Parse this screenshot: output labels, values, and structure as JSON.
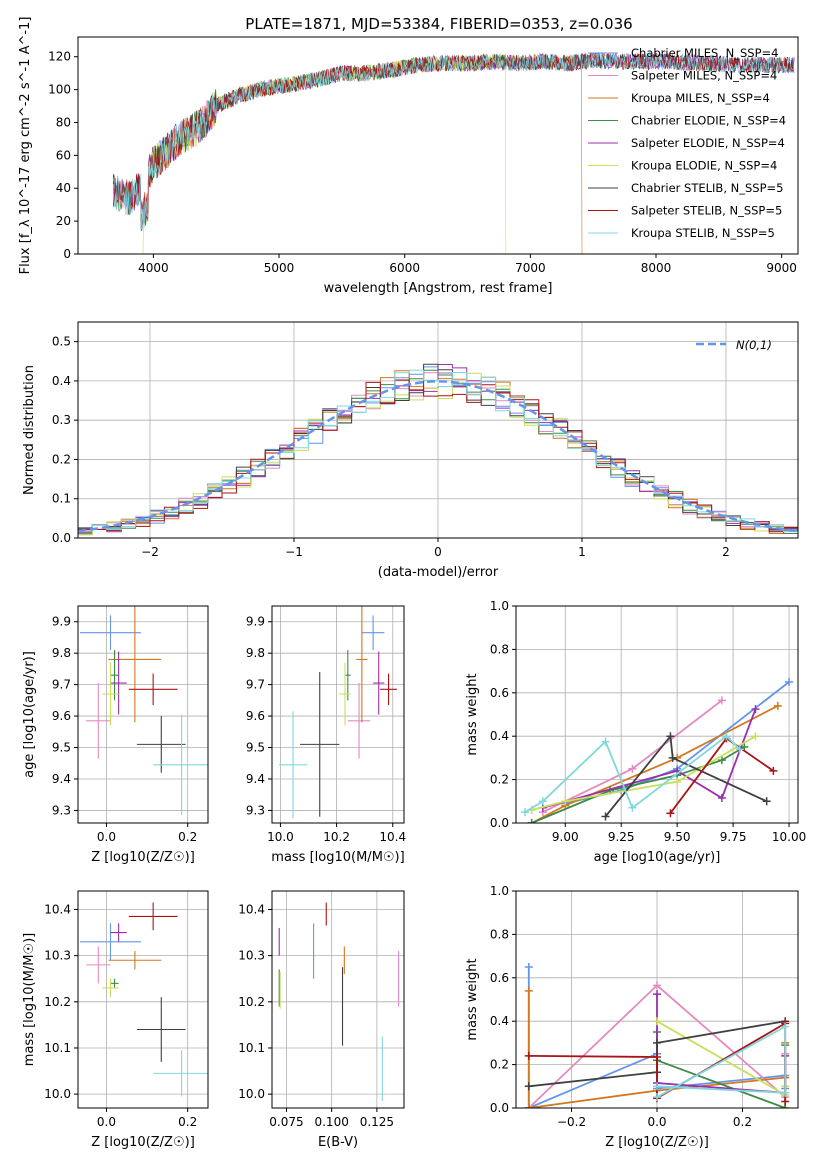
{
  "figure_title": "PLATE=1871, MJD=53384, FIBERID=0353, z=0.036",
  "colors": {
    "Chabrier MILES": "#6495ed",
    "Salpeter MILES": "#e58ac0",
    "Kroupa MILES": "#d2781e",
    "Chabrier ELODIE": "#3c8c46",
    "Salpeter ELODIE": "#9b2fae",
    "Kroupa ELODIE": "#c8e05a",
    "Chabrier STELIB": "#404040",
    "Salpeter STELIB": "#aa1414",
    "Kroupa STELIB": "#7fd8de"
  },
  "chart_data": [
    {
      "id": "spectrum",
      "type": "line",
      "xlabel": "wavelength [Angstrom, rest frame]",
      "ylabel": "Flux [f_λ 10^-17 erg cm^-2 s^-1 A^-1]",
      "xlim": [
        3400,
        9130
      ],
      "ylim": [
        0,
        132
      ],
      "xticks": [
        4000,
        5000,
        6000,
        7000,
        8000,
        9000
      ],
      "yticks": [
        0,
        20,
        40,
        60,
        80,
        100,
        120
      ],
      "grid": false,
      "legend": "top-right",
      "legend_entries": [
        "Chabrier MILES, N_SSP=4",
        "Salpeter MILES, N_SSP=4",
        "Kroupa MILES, N_SSP=4",
        "Chabrier ELODIE, N_SSP=4",
        "Salpeter ELODIE, N_SSP=4",
        "Kroupa ELODIE, N_SSP=4",
        "Chabrier STELIB, N_SSP=5",
        "Salpeter STELIB, N_SSP=5",
        "Kroupa STELIB, N_SSP=5"
      ],
      "continuum": {
        "x": [
          3680,
          3800,
          3900,
          4000,
          4100,
          4200,
          4300,
          4400,
          4500,
          4700,
          4900,
          5100,
          5300,
          5500,
          5700,
          5900,
          6100,
          6300,
          6500,
          6700,
          6900,
          7100,
          7300,
          7500,
          7800,
          8100,
          8400,
          8700,
          9100
        ],
        "y": [
          38,
          34,
          40,
          55,
          62,
          70,
          74,
          80,
          90,
          97,
          101,
          103,
          106,
          110,
          110,
          112,
          115,
          116,
          116,
          117,
          116,
          117,
          116,
          118,
          117,
          117,
          116,
          115,
          115
        ]
      },
      "cutoffs": [
        {
          "series": "Kroupa ELODIE",
          "x_end": 6800
        },
        {
          "series": "Kroupa MILES",
          "x_end": 7410
        },
        {
          "series": "Kroupa ELODIE",
          "x_start": 3920
        }
      ]
    },
    {
      "id": "residual-histogram",
      "type": "histogram",
      "xlabel": "(data-model)/error",
      "ylabel": "Normed distribution",
      "xlim": [
        -2.5,
        2.5
      ],
      "ylim": [
        0,
        0.55
      ],
      "xticks": [
        -2,
        -1,
        0,
        1,
        2
      ],
      "yticks": [
        0.0,
        0.1,
        0.2,
        0.3,
        0.4,
        0.5
      ],
      "grid": true,
      "legend": "top-right",
      "legend_entries": [
        "N(0,1)"
      ],
      "bin_width": 0.1
    },
    {
      "id": "age-vs-Z",
      "type": "errorbar",
      "xlabel": "Z [log10(Z/Z☉)]",
      "ylabel": "age  [log10(age/yr)]",
      "xlim": [
        -0.07,
        0.25
      ],
      "ylim": [
        9.26,
        9.95
      ],
      "xticks": [
        0.0,
        0.2
      ],
      "yticks": [
        9.3,
        9.4,
        9.5,
        9.6,
        9.7,
        9.8,
        9.9
      ],
      "grid": true,
      "points": [
        {
          "series": "Chabrier MILES",
          "x": 0.01,
          "xerr": 0.075,
          "y": 9.865,
          "yerr": 0.055
        },
        {
          "series": "Salpeter MILES",
          "x": -0.02,
          "xerr": 0.03,
          "y": 9.585,
          "yerr": 0.12
        },
        {
          "series": "Kroupa MILES",
          "x": 0.07,
          "xerr": 0.065,
          "y": 9.78,
          "yerr": 0.2
        },
        {
          "series": "Chabrier ELODIE",
          "x": 0.02,
          "xerr": 0.01,
          "y": 9.73,
          "yerr": 0.08
        },
        {
          "series": "Salpeter ELODIE",
          "x": 0.03,
          "xerr": 0.02,
          "y": 9.705,
          "yerr": 0.1
        },
        {
          "series": "Kroupa ELODIE",
          "x": 0.01,
          "xerr": 0.02,
          "y": 9.67,
          "yerr": 0.1
        },
        {
          "series": "Chabrier STELIB",
          "x": 0.135,
          "xerr": 0.06,
          "y": 9.51,
          "yerr": 0.09
        },
        {
          "series": "Salpeter STELIB",
          "x": 0.115,
          "xerr": 0.06,
          "y": 9.685,
          "yerr": 0.05
        },
        {
          "series": "Kroupa STELIB",
          "x": 0.185,
          "xerr": 0.07,
          "y": 9.445,
          "yerr": 0.16
        }
      ]
    },
    {
      "id": "age-vs-mass",
      "type": "errorbar",
      "xlabel": "mass [log10(M/M☉)]",
      "ylabel": "",
      "xlim": [
        9.97,
        10.44
      ],
      "ylim": [
        9.26,
        9.95
      ],
      "xticks": [
        10.0,
        10.2,
        10.4
      ],
      "yticks": [
        9.3,
        9.4,
        9.5,
        9.6,
        9.7,
        9.8,
        9.9
      ],
      "grid": true,
      "points": [
        {
          "series": "Chabrier MILES",
          "x": 10.33,
          "xerr": 0.04,
          "y": 9.865,
          "yerr": 0.055
        },
        {
          "series": "Salpeter MILES",
          "x": 10.28,
          "xerr": 0.04,
          "y": 9.585,
          "yerr": 0.12
        },
        {
          "series": "Kroupa MILES",
          "x": 10.29,
          "xerr": 0.02,
          "y": 9.78,
          "yerr": 0.2
        },
        {
          "series": "Chabrier ELODIE",
          "x": 10.24,
          "xerr": 0.01,
          "y": 9.73,
          "yerr": 0.08
        },
        {
          "series": "Salpeter ELODIE",
          "x": 10.35,
          "xerr": 0.02,
          "y": 9.705,
          "yerr": 0.1
        },
        {
          "series": "Kroupa ELODIE",
          "x": 10.23,
          "xerr": 0.02,
          "y": 9.67,
          "yerr": 0.1
        },
        {
          "series": "Chabrier STELIB",
          "x": 10.14,
          "xerr": 0.07,
          "y": 9.51,
          "yerr": 0.23
        },
        {
          "series": "Salpeter STELIB",
          "x": 10.385,
          "xerr": 0.03,
          "y": 9.685,
          "yerr": 0.05
        },
        {
          "series": "Kroupa STELIB",
          "x": 10.045,
          "xerr": 0.05,
          "y": 9.445,
          "yerr": 0.17
        }
      ]
    },
    {
      "id": "mass-weight-vs-age",
      "type": "line",
      "xlabel": "age  [log10(age/yr)]",
      "ylabel": "mass weight",
      "xlim": [
        8.78,
        10.04
      ],
      "ylim": [
        0,
        1
      ],
      "xticks": [
        9.0,
        9.25,
        9.5,
        9.75,
        10.0
      ],
      "yticks": [
        0.0,
        0.2,
        0.4,
        0.6,
        0.8,
        1.0
      ],
      "grid": true,
      "series": [
        {
          "name": "Chabrier MILES",
          "x": [
            9.0,
            9.25,
            9.5,
            10.0
          ],
          "y": [
            0.09,
            0.15,
            0.25,
            0.65
          ]
        },
        {
          "name": "Salpeter MILES",
          "x": [
            8.9,
            9.3,
            9.7
          ],
          "y": [
            0.05,
            0.25,
            0.565
          ]
        },
        {
          "name": "Kroupa MILES",
          "x": [
            8.85,
            9.0,
            9.5,
            9.95
          ],
          "y": [
            0.0,
            0.08,
            0.3,
            0.54
          ]
        },
        {
          "name": "Chabrier ELODIE",
          "x": [
            8.85,
            9.2,
            9.5,
            9.7,
            9.8
          ],
          "y": [
            0.0,
            0.15,
            0.22,
            0.29,
            0.35
          ]
        },
        {
          "name": "Salpeter ELODIE",
          "x": [
            8.9,
            9.5,
            9.7,
            9.85
          ],
          "y": [
            0.07,
            0.24,
            0.115,
            0.525
          ]
        },
        {
          "name": "Kroupa ELODIE",
          "x": [
            8.85,
            9.0,
            9.5,
            9.85
          ],
          "y": [
            0.06,
            0.1,
            0.19,
            0.4
          ]
        },
        {
          "name": "Chabrier STELIB",
          "x": [
            9.18,
            9.47,
            9.48,
            9.9
          ],
          "y": [
            0.03,
            0.4,
            0.3,
            0.1
          ]
        },
        {
          "name": "Salpeter STELIB",
          "x": [
            9.47,
            9.72,
            9.93
          ],
          "y": [
            0.045,
            0.39,
            0.24
          ]
        },
        {
          "name": "Kroupa STELIB",
          "x": [
            8.82,
            8.9,
            9.18,
            9.3,
            9.72,
            9.78
          ],
          "y": [
            0.05,
            0.1,
            0.375,
            0.07,
            0.4,
            0.34
          ]
        }
      ]
    },
    {
      "id": "mass-vs-Z",
      "type": "errorbar",
      "xlabel": "Z [log10(Z/Z☉)]",
      "ylabel": "mass [log10(M/M☉)]",
      "xlim": [
        -0.07,
        0.25
      ],
      "ylim": [
        9.97,
        10.44
      ],
      "xticks": [
        0.0,
        0.2
      ],
      "yticks": [
        10.0,
        10.1,
        10.2,
        10.3,
        10.4
      ],
      "grid": true,
      "points": [
        {
          "series": "Chabrier MILES",
          "x": 0.01,
          "xerr": 0.075,
          "y": 10.33,
          "yerr": 0.04
        },
        {
          "series": "Salpeter MILES",
          "x": -0.02,
          "xerr": 0.03,
          "y": 10.28,
          "yerr": 0.04
        },
        {
          "series": "Kroupa MILES",
          "x": 0.07,
          "xerr": 0.065,
          "y": 10.29,
          "yerr": 0.02
        },
        {
          "series": "Chabrier ELODIE",
          "x": 0.02,
          "xerr": 0.01,
          "y": 10.24,
          "yerr": 0.01
        },
        {
          "series": "Salpeter ELODIE",
          "x": 0.03,
          "xerr": 0.02,
          "y": 10.35,
          "yerr": 0.02
        },
        {
          "series": "Kroupa ELODIE",
          "x": 0.01,
          "xerr": 0.02,
          "y": 10.23,
          "yerr": 0.02
        },
        {
          "series": "Chabrier STELIB",
          "x": 0.135,
          "xerr": 0.06,
          "y": 10.14,
          "yerr": 0.07
        },
        {
          "series": "Salpeter STELIB",
          "x": 0.115,
          "xerr": 0.06,
          "y": 10.385,
          "yerr": 0.03
        },
        {
          "series": "Kroupa STELIB",
          "x": 0.185,
          "xerr": 0.07,
          "y": 10.045,
          "yerr": 0.05
        }
      ]
    },
    {
      "id": "mass-vs-ebv",
      "type": "errorbar",
      "xlabel": "E(B-V)",
      "ylabel": "",
      "xlim": [
        0.067,
        0.14
      ],
      "ylim": [
        9.97,
        10.44
      ],
      "xticks": [
        0.075,
        0.1,
        0.125
      ],
      "yticks": [
        10.0,
        10.1,
        10.2,
        10.3,
        10.4
      ],
      "grid": true,
      "points": [
        {
          "series": "Chabrier MILES",
          "x": 0.09,
          "xerr": 0,
          "y": 10.31,
          "yerr": 0.06
        },
        {
          "series": "Salpeter MILES",
          "x": 0.137,
          "xerr": 0,
          "y": 10.25,
          "yerr": 0.06
        },
        {
          "series": "Kroupa MILES",
          "x": 0.107,
          "xerr": 0,
          "y": 10.29,
          "yerr": 0.03
        },
        {
          "series": "Chabrier ELODIE",
          "x": 0.071,
          "xerr": 0,
          "y": 10.23,
          "yerr": 0.04
        },
        {
          "series": "Salpeter ELODIE",
          "x": 0.071,
          "xerr": 0,
          "y": 10.33,
          "yerr": 0.03
        },
        {
          "series": "Kroupa ELODIE",
          "x": 0.0715,
          "xerr": 0,
          "y": 10.225,
          "yerr": 0.04
        },
        {
          "series": "Chabrier STELIB",
          "x": 0.106,
          "xerr": 0,
          "y": 10.19,
          "yerr": 0.085
        },
        {
          "series": "Salpeter STELIB",
          "x": 0.097,
          "xerr": 0,
          "y": 10.39,
          "yerr": 0.025
        },
        {
          "series": "Kroupa STELIB",
          "x": 0.128,
          "xerr": 0,
          "y": 10.055,
          "yerr": 0.07
        }
      ]
    },
    {
      "id": "mass-weight-vs-Z",
      "type": "line",
      "xlabel": "Z [log10(Z/Z☉)]",
      "ylabel": "mass weight",
      "xlim": [
        -0.33,
        0.33
      ],
      "ylim": [
        0,
        1
      ],
      "xticks": [
        -0.2,
        0.0,
        0.2
      ],
      "yticks": [
        0.0,
        0.2,
        0.4,
        0.6,
        0.8,
        1.0
      ],
      "grid": true,
      "series": [
        {
          "name": "Chabrier MILES",
          "x": [
            -0.3,
            -0.3,
            0.0,
            0.0,
            0.3,
            0.3
          ],
          "y": [
            0.65,
            0.0,
            0.25,
            0.09,
            0.15,
            0.09
          ]
        },
        {
          "name": "Salpeter MILES",
          "x": [
            -0.3,
            0.0,
            0.3,
            0.3
          ],
          "y": [
            0.0,
            0.565,
            0.05,
            0.25
          ]
        },
        {
          "name": "Kroupa MILES",
          "x": [
            -0.3,
            -0.3,
            0.0,
            0.3,
            0.3
          ],
          "y": [
            0.54,
            0.0,
            0.08,
            0.14,
            0.3
          ]
        },
        {
          "name": "Chabrier ELODIE",
          "x": [
            0.0,
            0.0,
            0.3,
            0.3
          ],
          "y": [
            0.35,
            0.22,
            0.0,
            0.29
          ]
        },
        {
          "name": "Salpeter ELODIE",
          "x": [
            0.0,
            0.0,
            0.3,
            0.3
          ],
          "y": [
            0.525,
            0.115,
            0.07,
            0.24
          ]
        },
        {
          "name": "Kroupa ELODIE",
          "x": [
            0.0,
            0.3,
            0.3
          ],
          "y": [
            0.4,
            0.06,
            0.1
          ]
        },
        {
          "name": "Chabrier STELIB",
          "x": [
            -0.3,
            0.0,
            0.0,
            0.3
          ],
          "y": [
            0.1,
            0.165,
            0.3,
            0.4
          ]
        },
        {
          "name": "Salpeter STELIB",
          "x": [
            -0.3,
            0.0,
            0.0,
            0.3,
            0.3
          ],
          "y": [
            0.24,
            0.235,
            0.045,
            0.39,
            0.03
          ]
        },
        {
          "name": "Kroupa STELIB",
          "x": [
            0.0,
            0.3,
            0.3,
            0.0
          ],
          "y": [
            0.05,
            0.375,
            0.07,
            0.1
          ]
        }
      ]
    }
  ]
}
